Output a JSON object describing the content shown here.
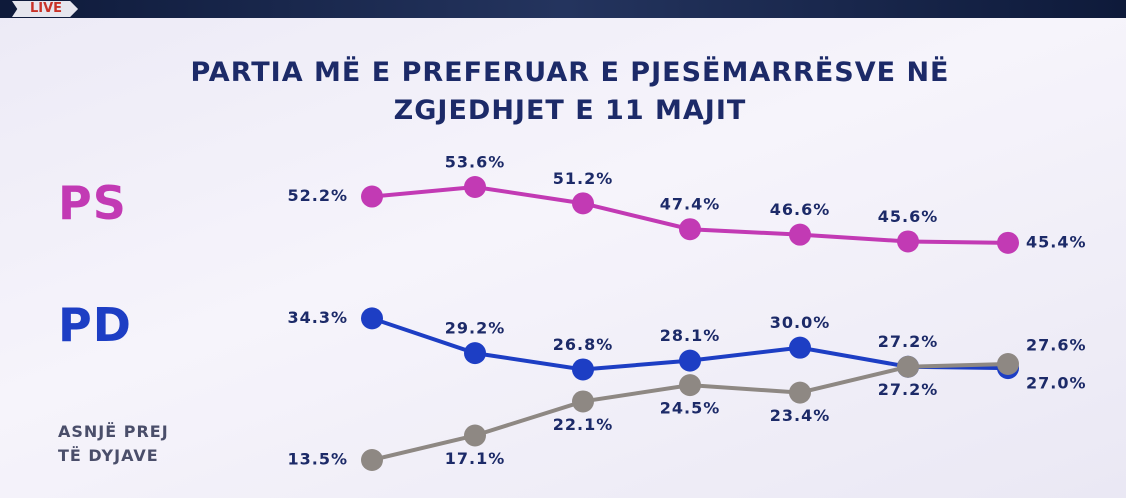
{
  "badge": "LIVE",
  "chart_data": {
    "type": "line",
    "title": "PARTIA MË E PREFERUAR E PJESËMARRËSVE NË ZGJEDHJET E 11 MAJIT",
    "categories": [
      null,
      null,
      null,
      null,
      null,
      null,
      null
    ],
    "series": [
      {
        "name": "PS",
        "color": "#c23ab4",
        "values": [
          52.2,
          53.6,
          51.2,
          47.4,
          46.6,
          45.6,
          45.4
        ],
        "value_labels": [
          "52.2%",
          "53.6%",
          "51.2%",
          "47.4%",
          "46.6%",
          "45.6%",
          "45.4%"
        ]
      },
      {
        "name": "PD",
        "color": "#1d3ec4",
        "values": [
          34.3,
          29.2,
          26.8,
          28.1,
          30.0,
          27.2,
          27.0
        ],
        "value_labels": [
          "34.3%",
          "29.2%",
          "26.8%",
          "28.1%",
          "30.0%",
          "27.2%",
          "27.0%"
        ]
      },
      {
        "name": "ASNJË PREJ TË DYJAVE",
        "color": "#8e8883",
        "values": [
          13.5,
          17.1,
          22.1,
          24.5,
          23.4,
          27.2,
          27.6
        ],
        "value_labels": [
          "13.5%",
          "17.1%",
          "22.1%",
          "24.5%",
          "23.4%",
          "27.2%",
          "27.6%"
        ]
      }
    ]
  }
}
